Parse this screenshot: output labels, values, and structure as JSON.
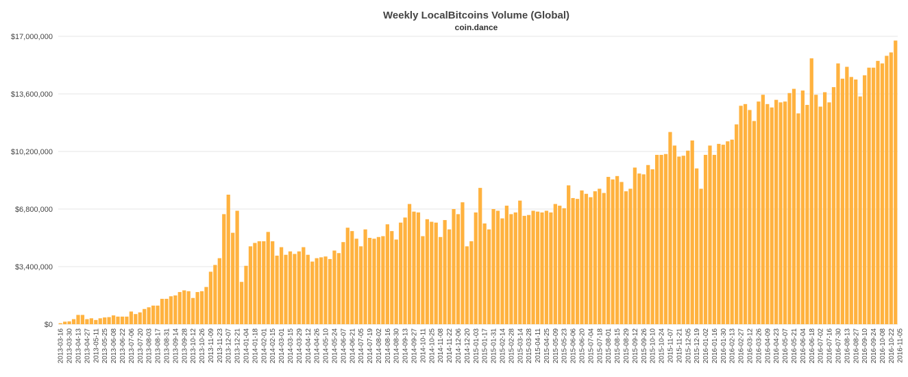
{
  "chart_data": {
    "type": "bar",
    "title": "Weekly LocalBitcoins Volume (Global)",
    "subtitle": "coin.dance",
    "xlabel": "",
    "ylabel": "",
    "ylim": [
      0,
      17000000
    ],
    "yticks": [
      0,
      3400000,
      6800000,
      10200000,
      13600000,
      17000000
    ],
    "ytick_labels": [
      "$0",
      "$3,400,000",
      "$6,800,000",
      "$10,200,000",
      "$13,600,000",
      "$17,000,000"
    ],
    "grid": true,
    "legend": "none",
    "bar_color": "#ffb23f",
    "x_tick_labels": [
      "2013-03-16",
      "2013-03-30",
      "2013-04-13",
      "2013-04-27",
      "2013-05-11",
      "2013-05-25",
      "2013-06-08",
      "2013-06-22",
      "2013-07-06",
      "2013-07-20",
      "2013-08-03",
      "2013-08-17",
      "2013-08-31",
      "2013-09-14",
      "2013-09-28",
      "2013-10-12",
      "2013-10-26",
      "2013-11-09",
      "2013-11-23",
      "2013-12-07",
      "2013-12-21",
      "2014-01-04",
      "2014-01-18",
      "2014-02-01",
      "2014-02-15",
      "2014-03-01",
      "2014-03-15",
      "2014-03-29",
      "2014-04-12",
      "2014-04-26",
      "2014-05-10",
      "2014-05-24",
      "2014-06-07",
      "2014-06-21",
      "2014-07-05",
      "2014-07-19",
      "2014-08-02",
      "2014-08-16",
      "2014-08-30",
      "2014-09-13",
      "2014-09-27",
      "2014-10-11",
      "2014-10-25",
      "2014-11-08",
      "2014-11-22",
      "2014-12-06",
      "2014-12-20",
      "2015-01-03",
      "2015-01-17",
      "2015-01-31",
      "2015-02-14",
      "2015-02-28",
      "2015-03-14",
      "2015-03-28",
      "2015-04-11",
      "2015-04-25",
      "2015-05-09",
      "2015-05-23",
      "2015-06-06",
      "2015-06-20",
      "2015-07-04",
      "2015-07-18",
      "2015-08-01",
      "2015-08-15",
      "2015-08-29",
      "2015-09-12",
      "2015-09-26",
      "2015-10-10",
      "2015-10-24",
      "2015-11-07",
      "2015-11-21",
      "2015-12-05",
      "2015-12-19",
      "2016-01-02",
      "2016-01-16",
      "2016-01-30",
      "2016-02-13",
      "2016-02-27",
      "2016-03-12",
      "2016-03-26",
      "2016-04-09",
      "2016-04-23",
      "2016-05-07",
      "2016-05-21",
      "2016-06-04",
      "2016-06-18",
      "2016-07-02",
      "2016-07-16",
      "2016-07-30",
      "2016-08-13",
      "2016-08-27",
      "2016-09-10",
      "2016-09-24",
      "2016-10-08",
      "2016-10-22",
      "2016-11-05"
    ],
    "values": [
      60000,
      150000,
      170000,
      300000,
      550000,
      550000,
      300000,
      350000,
      250000,
      350000,
      400000,
      420000,
      520000,
      450000,
      450000,
      450000,
      750000,
      600000,
      700000,
      900000,
      1000000,
      1100000,
      1100000,
      1500000,
      1500000,
      1650000,
      1700000,
      1900000,
      2000000,
      1950000,
      1550000,
      1900000,
      1950000,
      2200000,
      3100000,
      3500000,
      3900000,
      6500000,
      7650000,
      5400000,
      6700000,
      2500000,
      3450000,
      4600000,
      4800000,
      4900000,
      4900000,
      5450000,
      4900000,
      4050000,
      4550000,
      4100000,
      4300000,
      4150000,
      4300000,
      4550000,
      4100000,
      3700000,
      3900000,
      3950000,
      4000000,
      3850000,
      4350000,
      4200000,
      4850000,
      5700000,
      5500000,
      5050000,
      4600000,
      5600000,
      5100000,
      5050000,
      5150000,
      5200000,
      5900000,
      5500000,
      5000000,
      6000000,
      6300000,
      7100000,
      6650000,
      6600000,
      5200000,
      6200000,
      6050000,
      6000000,
      5150000,
      6150000,
      5600000,
      6800000,
      6500000,
      7200000,
      4600000,
      4900000,
      6600000,
      8050000,
      5950000,
      5600000,
      6800000,
      6700000,
      6250000,
      7000000,
      6500000,
      6600000,
      7300000,
      6400000,
      6450000,
      6700000,
      6650000,
      6600000,
      6700000,
      6600000,
      7100000,
      7000000,
      6850000,
      8200000,
      7450000,
      7400000,
      7900000,
      7700000,
      7500000,
      7850000,
      8000000,
      7750000,
      8700000,
      8550000,
      8750000,
      8400000,
      7850000,
      8000000,
      9250000,
      8900000,
      8850000,
      9400000,
      9150000,
      10000000,
      10000000,
      10050000,
      11350000,
      10550000,
      9900000,
      9950000,
      10250000,
      10850000,
      9200000,
      8000000,
      10000000,
      10550000,
      10000000,
      10650000,
      10600000,
      10800000,
      10900000,
      11800000,
      12900000,
      13000000,
      12650000,
      12000000,
      13150000,
      13550000,
      13000000,
      12800000,
      13250000,
      13100000,
      13150000,
      13650000,
      13900000,
      12450000,
      13800000,
      12950000,
      15700000,
      13550000,
      12850000,
      13700000,
      13100000,
      14000000,
      15400000,
      14500000,
      15200000,
      14600000,
      14450000,
      13450000,
      14700000,
      15150000,
      15150000,
      15550000,
      15400000,
      15850000,
      16050000,
      16750000
    ]
  }
}
